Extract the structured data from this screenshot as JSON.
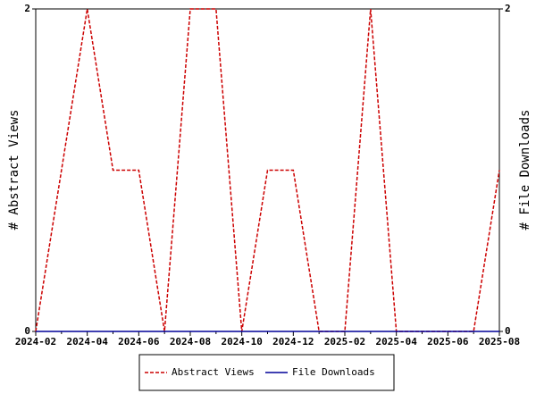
{
  "chart_data": {
    "type": "line",
    "categories": [
      "2024-02",
      "2024-03",
      "2024-04",
      "2024-05",
      "2024-06",
      "2024-07",
      "2024-08",
      "2024-09",
      "2024-10",
      "2024-11",
      "2024-12",
      "2025-01",
      "2025-02",
      "2025-03",
      "2025-04",
      "2025-05",
      "2025-06",
      "2025-07",
      "2025-08"
    ],
    "series": [
      {
        "name": "Abstract Views",
        "color": "#cc0000",
        "dash": true,
        "values": [
          0,
          1,
          2,
          1,
          1,
          0,
          2,
          2,
          0,
          1,
          1,
          0,
          0,
          2,
          0,
          0,
          0,
          0,
          1
        ]
      },
      {
        "name": "File Downloads",
        "color": "#000099",
        "dash": false,
        "axis": "y2",
        "values": [
          0,
          0,
          0,
          0,
          0,
          0,
          0,
          0,
          0,
          0,
          0,
          0,
          0,
          0,
          0,
          0,
          0,
          0,
          0
        ]
      }
    ],
    "ylabel": "# Abstract Views",
    "y2label": "# File Downloads",
    "ylim": [
      0,
      2
    ],
    "yticks": [
      0,
      2
    ],
    "y2lim": [
      0,
      2
    ],
    "y2ticks": [
      0,
      2
    ],
    "legend": "bottom"
  }
}
